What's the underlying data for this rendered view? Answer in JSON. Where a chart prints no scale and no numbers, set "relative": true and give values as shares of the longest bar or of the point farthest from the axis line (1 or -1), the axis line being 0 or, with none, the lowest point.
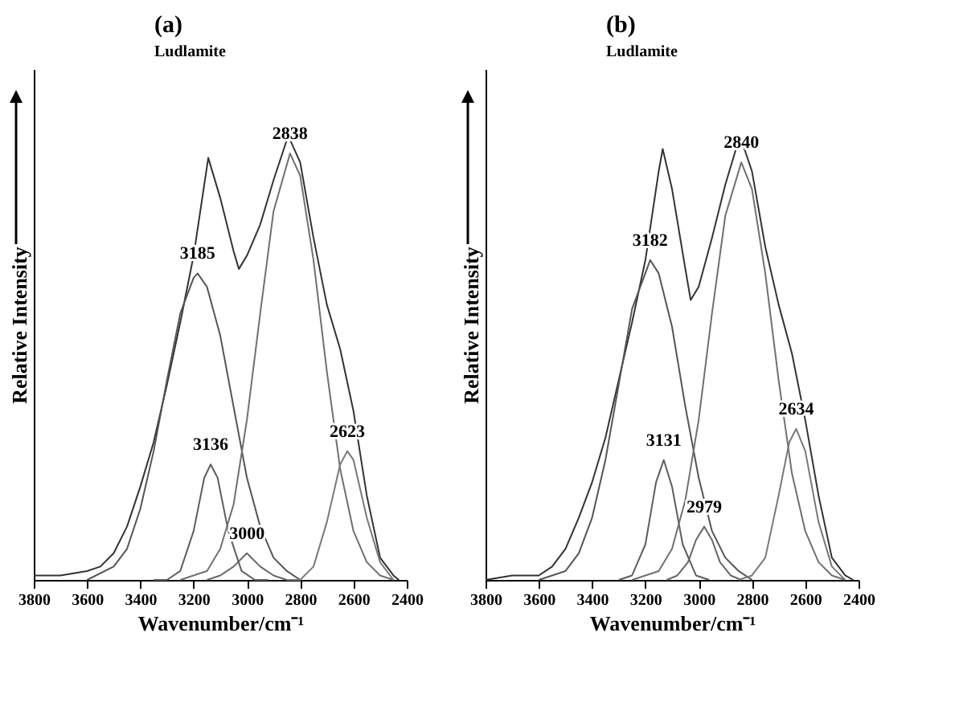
{
  "chart_data": [
    {
      "type": "line",
      "title": "(a)",
      "subtitle": "Ludlamite",
      "xlabel": "Wavenumber/cm⁻¹",
      "ylabel": "Relative  Intensity",
      "relative": true,
      "xlim": [
        3800,
        2400
      ],
      "xticks": [
        3800,
        3600,
        3400,
        3200,
        3000,
        2800,
        2600,
        2400
      ],
      "grid": false,
      "legend": false,
      "marker": "none",
      "line_style": "solid",
      "annotations": [
        {
          "text": "3185",
          "x": 3185,
          "y": 0.69
        },
        {
          "text": "3136",
          "x": 3136,
          "y": 0.26
        },
        {
          "text": "3000",
          "x": 3000,
          "y": 0.06
        },
        {
          "text": "2838",
          "x": 2838,
          "y": 0.96
        },
        {
          "text": "2623",
          "x": 2623,
          "y": 0.29
        }
      ],
      "series": [
        {
          "color": "#333333",
          "x": [
            3800,
            3700,
            3600,
            3550,
            3500,
            3450,
            3400,
            3350,
            3300,
            3250,
            3200,
            3145,
            3100,
            3050,
            3030,
            3000,
            2950,
            2900,
            2845,
            2800,
            2750,
            2700,
            2650,
            2600,
            2550,
            2500,
            2450,
            2430
          ],
          "values": [
            0.01,
            0.01,
            0.02,
            0.03,
            0.06,
            0.12,
            0.21,
            0.31,
            0.44,
            0.58,
            0.73,
            0.95,
            0.86,
            0.74,
            0.7,
            0.73,
            0.8,
            0.9,
            1.0,
            0.94,
            0.77,
            0.62,
            0.52,
            0.38,
            0.19,
            0.05,
            0.01,
            0
          ]
        },
        {
          "color": "#555555",
          "x": [
            3600,
            3500,
            3450,
            3400,
            3350,
            3300,
            3250,
            3200,
            3185,
            3150,
            3100,
            3050,
            3000,
            2950,
            2900,
            2850,
            2800
          ],
          "values": [
            0,
            0.03,
            0.07,
            0.16,
            0.29,
            0.45,
            0.6,
            0.68,
            0.69,
            0.66,
            0.55,
            0.39,
            0.23,
            0.12,
            0.05,
            0.02,
            0
          ]
        },
        {
          "color": "#5e5e5e",
          "x": [
            3350,
            3300,
            3250,
            3200,
            3160,
            3136,
            3110,
            3070,
            3020,
            2970,
            2920
          ],
          "values": [
            0,
            0,
            0.02,
            0.11,
            0.23,
            0.26,
            0.23,
            0.11,
            0.02,
            0,
            0
          ]
        },
        {
          "color": "#676767",
          "x": [
            3150,
            3100,
            3050,
            3000,
            2950,
            2900,
            2850
          ],
          "values": [
            0,
            0.01,
            0.03,
            0.06,
            0.03,
            0.01,
            0
          ]
        },
        {
          "color": "#707070",
          "x": [
            3250,
            3150,
            3100,
            3050,
            3000,
            2950,
            2900,
            2838,
            2800,
            2750,
            2700,
            2650,
            2600,
            2550,
            2500,
            2450
          ],
          "values": [
            0,
            0.02,
            0.07,
            0.17,
            0.36,
            0.6,
            0.83,
            0.96,
            0.91,
            0.72,
            0.47,
            0.25,
            0.11,
            0.04,
            0.01,
            0
          ]
        },
        {
          "color": "#797979",
          "x": [
            2850,
            2800,
            2750,
            2700,
            2650,
            2623,
            2600,
            2550,
            2500,
            2450
          ],
          "values": [
            0,
            0,
            0.03,
            0.13,
            0.26,
            0.29,
            0.27,
            0.14,
            0.04,
            0
          ]
        }
      ]
    },
    {
      "type": "line",
      "title": "(b)",
      "subtitle": "Ludlamite",
      "xlabel": "Wavenumber/cm⁻¹",
      "ylabel": "Relative  Intensity",
      "relative": true,
      "xlim": [
        3800,
        2400
      ],
      "xticks": [
        3800,
        3600,
        3400,
        3200,
        3000,
        2800,
        2600,
        2400
      ],
      "grid": false,
      "legend": false,
      "marker": "none",
      "line_style": "solid",
      "annotations": [
        {
          "text": "3182",
          "x": 3182,
          "y": 0.72
        },
        {
          "text": "3131",
          "x": 3131,
          "y": 0.27
        },
        {
          "text": "2979",
          "x": 2979,
          "y": 0.12
        },
        {
          "text": "2840",
          "x": 2840,
          "y": 0.94
        },
        {
          "text": "2634",
          "x": 2634,
          "y": 0.34
        }
      ],
      "series": [
        {
          "color": "#333333",
          "x": [
            3800,
            3700,
            3600,
            3550,
            3500,
            3450,
            3400,
            3350,
            3300,
            3250,
            3200,
            3150,
            3135,
            3100,
            3050,
            3030,
            3000,
            2950,
            2900,
            2845,
            2800,
            2750,
            2700,
            2650,
            2600,
            2550,
            2500,
            2450,
            2420
          ],
          "values": [
            0,
            0.01,
            0.01,
            0.03,
            0.07,
            0.14,
            0.22,
            0.32,
            0.45,
            0.58,
            0.72,
            0.92,
            0.97,
            0.88,
            0.7,
            0.63,
            0.66,
            0.77,
            0.89,
            1.0,
            0.92,
            0.75,
            0.62,
            0.51,
            0.36,
            0.19,
            0.05,
            0.01,
            0
          ]
        },
        {
          "color": "#555555",
          "x": [
            3600,
            3500,
            3450,
            3400,
            3350,
            3300,
            3250,
            3182,
            3150,
            3100,
            3050,
            3000,
            2950,
            2900,
            2850,
            2800
          ],
          "values": [
            0,
            0.02,
            0.06,
            0.14,
            0.27,
            0.44,
            0.61,
            0.72,
            0.69,
            0.57,
            0.39,
            0.23,
            0.11,
            0.05,
            0.02,
            0
          ]
        },
        {
          "color": "#5e5e5e",
          "x": [
            3300,
            3250,
            3200,
            3160,
            3131,
            3100,
            3060,
            3010,
            2960
          ],
          "values": [
            0,
            0.01,
            0.08,
            0.22,
            0.27,
            0.21,
            0.08,
            0.01,
            0
          ]
        },
        {
          "color": "#676767",
          "x": [
            3120,
            3080,
            3040,
            3010,
            2979,
            2950,
            2920,
            2880,
            2840
          ],
          "values": [
            0,
            0.01,
            0.04,
            0.09,
            0.12,
            0.09,
            0.04,
            0.01,
            0
          ]
        },
        {
          "color": "#707070",
          "x": [
            3250,
            3150,
            3100,
            3050,
            3000,
            2950,
            2900,
            2840,
            2800,
            2750,
            2700,
            2650,
            2600,
            2550,
            2500,
            2450
          ],
          "values": [
            0,
            0.02,
            0.07,
            0.18,
            0.36,
            0.6,
            0.82,
            0.94,
            0.88,
            0.69,
            0.45,
            0.24,
            0.11,
            0.04,
            0.01,
            0
          ]
        },
        {
          "color": "#797979",
          "x": [
            2850,
            2800,
            2750,
            2700,
            2660,
            2634,
            2600,
            2550,
            2500,
            2450
          ],
          "values": [
            0,
            0.01,
            0.05,
            0.19,
            0.31,
            0.34,
            0.29,
            0.13,
            0.03,
            0
          ]
        }
      ]
    }
  ]
}
